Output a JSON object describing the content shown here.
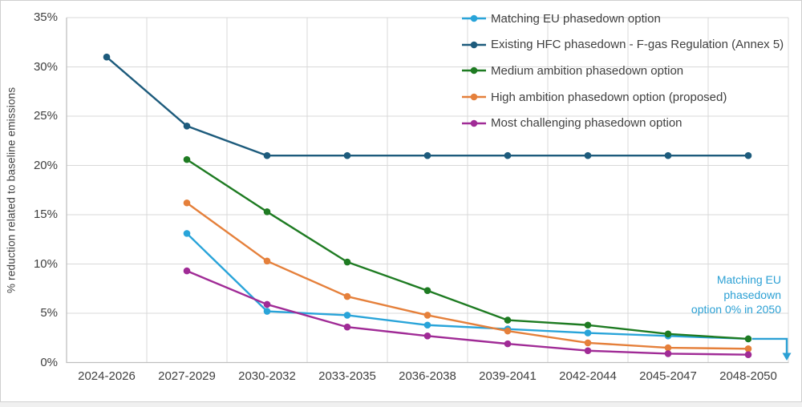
{
  "y_axis": {
    "title": "% reduction related to baseline emissions",
    "ticks": [
      "35%",
      "30%",
      "25%",
      "20%",
      "15%",
      "10%",
      "5%",
      "0%"
    ]
  },
  "annotation": {
    "lines": [
      "Matching EU",
      "phasedown",
      "option 0% in 2050"
    ],
    "color": "#2ba0d4"
  },
  "grid_color": "#d9d9d9",
  "axis_color": "#bfbfbf",
  "chart_data": {
    "type": "line",
    "title": "",
    "xlabel": "",
    "ylabel": "% reduction related to baseline emissions",
    "ylim": [
      0,
      35
    ],
    "grid": true,
    "legend_position": "top-right",
    "categories": [
      "2024-2026",
      "2027-2029",
      "2030-2032",
      "2033-2035",
      "2036-2038",
      "2039-2041",
      "2042-2044",
      "2045-2047",
      "2048-2050"
    ],
    "series": [
      {
        "name": "Matching EU phasedown option",
        "color": "#29a4d9",
        "values": [
          null,
          13.1,
          5.2,
          4.8,
          3.8,
          3.4,
          3.0,
          2.7,
          2.4
        ]
      },
      {
        "name": "Existing HFC phasedown - F-gas Regulation (Annex 5)",
        "color": "#1d5b7c",
        "values": [
          31,
          24,
          21,
          21,
          21,
          21,
          21,
          21,
          21
        ]
      },
      {
        "name": "Medium ambition phasedown option",
        "color": "#1e7b22",
        "values": [
          null,
          20.6,
          15.3,
          10.2,
          7.3,
          4.3,
          3.8,
          2.9,
          2.4
        ]
      },
      {
        "name": "High ambition phasedown option (proposed)",
        "color": "#e5803b",
        "values": [
          null,
          16.2,
          10.3,
          6.7,
          4.8,
          3.2,
          2.0,
          1.5,
          1.4
        ]
      },
      {
        "name": "Most challenging phasedown option",
        "color": "#a02b96",
        "values": [
          null,
          9.3,
          5.9,
          3.6,
          2.7,
          1.9,
          1.2,
          0.9,
          0.8
        ]
      }
    ],
    "annotation": "Matching EU phasedown option 0% in 2050"
  }
}
